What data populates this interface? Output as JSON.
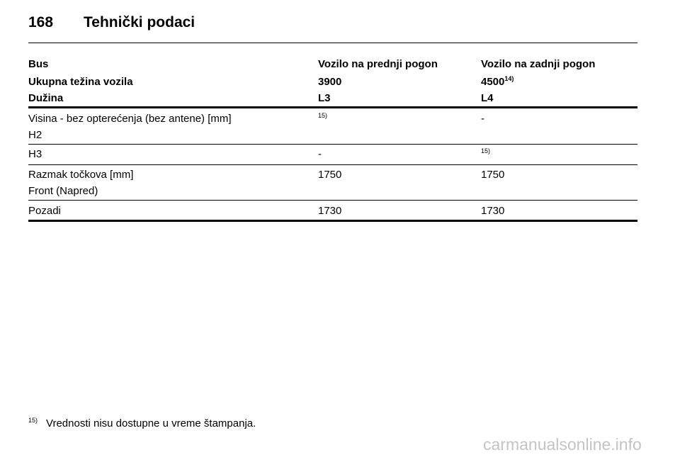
{
  "page_number": "168",
  "title": "Tehnički podaci",
  "table": {
    "header_rows": [
      [
        "Bus",
        "Vozilo na prednji pogon",
        "Vozilo na zadnji pogon"
      ],
      [
        "Ukupna težina vozila",
        "3900",
        {
          "text": "4500",
          "note": "14)"
        }
      ],
      [
        "Dužina",
        "L3",
        "L4"
      ]
    ],
    "rows": [
      [
        [
          "Visina - bez opterećenja (bez antene) [mm]",
          "H2"
        ],
        {
          "note": "15)"
        },
        "-"
      ],
      [
        "H3",
        "-",
        {
          "note": "15)"
        }
      ],
      [
        [
          "Razmak točkova [mm]",
          "Front (Napred)"
        ],
        "1750",
        "1750"
      ],
      [
        "Pozadi",
        "1730",
        "1730"
      ]
    ]
  },
  "footnote": {
    "mark": "15)",
    "text": "Vrednosti nisu dostupne u vreme štampanja."
  },
  "watermark": "carmanualsonline.info"
}
